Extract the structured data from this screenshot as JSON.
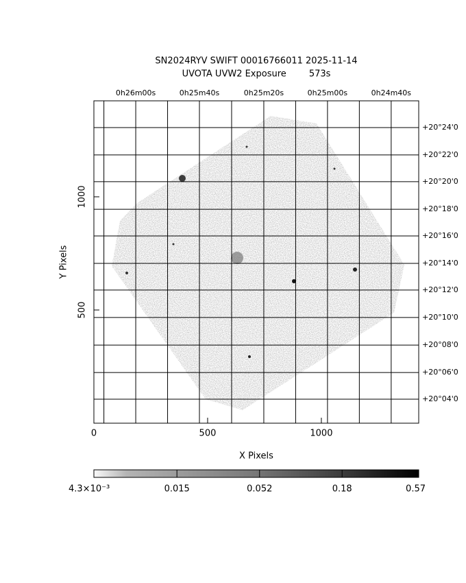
{
  "chart_data": {
    "type": "image",
    "title": [
      "SN2024RYV SWIFT 00016766011 2025-11-14",
      "UVOTA UVW2 Exposure        573s"
    ],
    "x_label": "X Pixels",
    "y_label": "Y Pixels",
    "xlim": [
      0,
      1428
    ],
    "ylim": [
      0,
      1424
    ],
    "xticks": [
      0,
      500,
      1000
    ],
    "yticks": [
      500,
      1000
    ],
    "x2ticks": [
      {
        "value": 184,
        "label": "0h26m00s"
      },
      {
        "value": 464,
        "label": "0h25m40s"
      },
      {
        "value": 747,
        "label": "0h25m20s"
      },
      {
        "value": 1027,
        "label": "0h25m00s"
      },
      {
        "value": 1307,
        "label": "0h24m40s"
      }
    ],
    "y2ticks": [
      {
        "value": 1306,
        "label": "+20°24'0"
      },
      {
        "value": 1185,
        "label": "+20°22'0"
      },
      {
        "value": 1067,
        "label": "+20°20'0"
      },
      {
        "value": 945,
        "label": "+20°18'0"
      },
      {
        "value": 827,
        "label": "+20°16'0"
      },
      {
        "value": 706,
        "label": "+20°14'0"
      },
      {
        "value": 588,
        "label": "+20°12'0"
      },
      {
        "value": 467,
        "label": "+20°10'0"
      },
      {
        "value": 345,
        "label": "+20°08'0"
      },
      {
        "value": 224,
        "label": "+20°06'0"
      },
      {
        "value": 106,
        "label": "+20°04'0"
      }
    ],
    "grid": true,
    "colorbar": {
      "clim": [
        0.0043,
        0.57
      ],
      "log": true,
      "ticks": [
        {
          "value": 0.0043,
          "label": "4.3×10⁻³"
        },
        0.015,
        0.052,
        0.18,
        0.57
      ]
    }
  }
}
